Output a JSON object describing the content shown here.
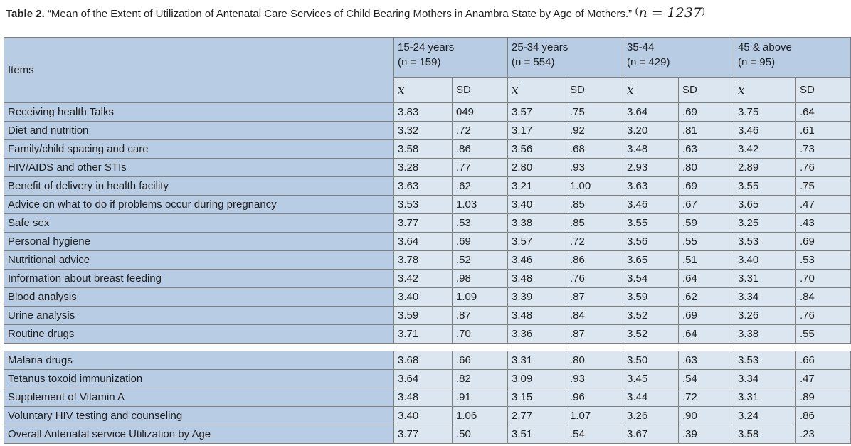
{
  "page": {
    "title_label": "Table 2.",
    "title_text": "“Mean of the Extent of Utilization of Antenatal Care Services of Child Bearing Mothers in Anambra State by Age of Mothers.”",
    "title_math_open": "(",
    "title_math": "n = 1237",
    "title_math_close": ")"
  },
  "table": {
    "items_header": "Items",
    "groups": [
      {
        "label": "15-24 years",
        "n": "(n = 159)"
      },
      {
        "label": "25-34 years",
        "n": "(n = 554)"
      },
      {
        "label": "35-44",
        "n": "(n = 429)"
      },
      {
        "label": "45 & above",
        "n": "(n = 95)"
      }
    ],
    "mean_symbol": "x",
    "sd_label": "SD",
    "rows_block1": [
      {
        "item": "Receiving health Talks",
        "values": [
          "3.83",
          "049",
          "3.57",
          ".75",
          "3.64",
          ".69",
          "3.75",
          ".64"
        ]
      },
      {
        "item": "Diet and nutrition",
        "values": [
          "3.32",
          ".72",
          "3.17",
          ".92",
          "3.20",
          ".81",
          "3.46",
          ".61"
        ]
      },
      {
        "item": "Family/child spacing and care",
        "values": [
          "3.58",
          ".86",
          "3.56",
          ".68",
          "3.48",
          ".63",
          "3.42",
          ".73"
        ]
      },
      {
        "item": "HIV/AIDS and other STIs",
        "values": [
          "3.28",
          ".77",
          "2.80",
          ".93",
          "2.93",
          ".80",
          "2.89",
          ".76"
        ]
      },
      {
        "item": "Benefit  of delivery in health facility",
        "values": [
          "3.63",
          ".62",
          "3.21",
          "1.00",
          "3.63",
          ".69",
          "3.55",
          ".75"
        ]
      },
      {
        "item": "Advice on what to do if problems occur during pregnancy",
        "values": [
          "3.53",
          "1.03",
          "3.40",
          ".85",
          "3.46",
          ".67",
          "3.65",
          ".47"
        ]
      },
      {
        "item": "Safe sex",
        "values": [
          "3.77",
          ".53",
          "3.38",
          ".85",
          "3.55",
          ".59",
          "3.25",
          ".43"
        ]
      },
      {
        "item": "Personal hygiene",
        "values": [
          "3.64",
          ".69",
          "3.57",
          ".72",
          "3.56",
          ".55",
          "3.53",
          ".69"
        ]
      },
      {
        "item": "Nutritional advice",
        "values": [
          "3.78",
          ".52",
          "3.46",
          ".86",
          "3.65",
          ".51",
          "3.40",
          ".53"
        ]
      },
      {
        "item": "Information about breast feeding",
        "values": [
          "3.42",
          ".98",
          "3.48",
          ".76",
          "3.54",
          ".64",
          "3.31",
          ".70"
        ]
      },
      {
        "item": "Blood analysis",
        "values": [
          "3.40",
          "1.09",
          "3.39",
          ".87",
          "3.59",
          ".62",
          "3.34",
          ".84"
        ]
      },
      {
        "item": "Urine analysis",
        "values": [
          "3.59",
          ".87",
          "3.48",
          ".84",
          "3.52",
          ".69",
          "3.26",
          ".76"
        ]
      },
      {
        "item": "Routine drugs",
        "values": [
          "3.71",
          ".70",
          "3.36",
          ".87",
          "3.52",
          ".64",
          "3.38",
          ".55"
        ]
      }
    ],
    "rows_block2": [
      {
        "item": "Malaria drugs",
        "values": [
          "3.68",
          ".66",
          "3.31",
          ".80",
          "3.50",
          ".63",
          "3.53",
          ".66"
        ]
      },
      {
        "item": "Tetanus toxoid immunization",
        "values": [
          "3.64",
          ".82",
          "3.09",
          ".93",
          "3.45",
          ".54",
          "3.34",
          ".47"
        ]
      },
      {
        "item": "Supplement of Vitamin A",
        "values": [
          "3.48",
          ".91",
          "3.15",
          ".96",
          "3.44",
          ".72",
          "3.31",
          ".89"
        ]
      },
      {
        "item": "Voluntary HIV testing and counseling",
        "values": [
          "3.40",
          "1.06",
          "2.77",
          "1.07",
          "3.26",
          ".90",
          "3.24",
          ".86"
        ]
      },
      {
        "item": "Overall Antenatal service Utilization by Age",
        "values": [
          "3.77",
          ".50",
          "3.51",
          ".54",
          "3.67",
          ".39",
          "3.58",
          ".23"
        ]
      }
    ]
  },
  "colors": {
    "header_bg": "#b8cce4",
    "subheader_bg": "#dce6f1",
    "item_cell_bg": "#b8cce4",
    "data_cell_bg": "#dce6f1",
    "border": "#7f7f7f",
    "text": "#1f1f1f"
  }
}
